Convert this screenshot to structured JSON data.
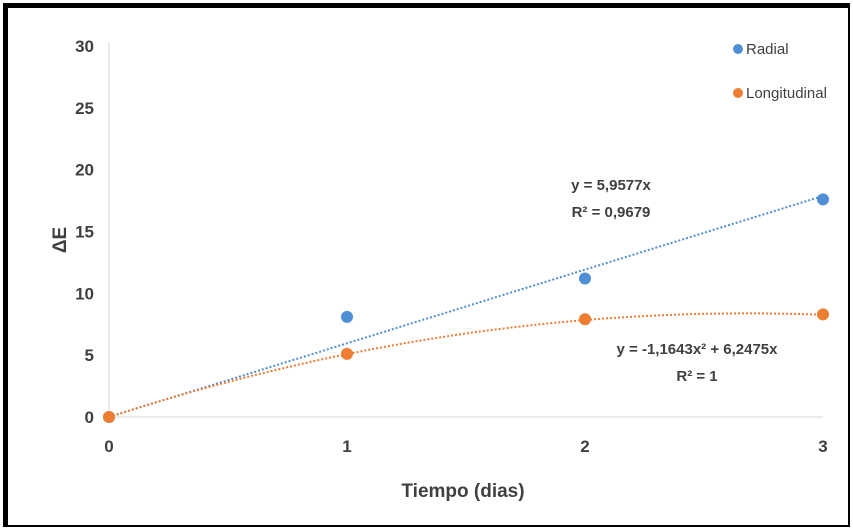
{
  "chart_data": {
    "type": "scatter",
    "xlabel": "Tiempo (dias)",
    "ylabel": "ΔE",
    "xlim": [
      0,
      3
    ],
    "ylim": [
      0,
      30
    ],
    "x_ticks": [
      "0",
      "1",
      "2",
      "3"
    ],
    "y_ticks": [
      "0",
      "5",
      "10",
      "15",
      "20",
      "25",
      "30"
    ],
    "grid": false,
    "legend_position": "top-right",
    "series": [
      {
        "name": "Radial",
        "color": "#4E8FD6",
        "x": [
          0,
          1,
          2,
          3
        ],
        "y": [
          0,
          8.1,
          11.2,
          17.6
        ],
        "trendline": {
          "type": "linear",
          "a": 0,
          "b": 5.9577,
          "equation": "y = 5,9577x",
          "r2": "R² = 0,9679"
        }
      },
      {
        "name": "Longitudinal",
        "color": "#ED7D31",
        "x": [
          0,
          1,
          2,
          3
        ],
        "y": [
          0,
          5.1,
          7.9,
          8.3
        ],
        "trendline": {
          "type": "poly2",
          "a": -1.1643,
          "b": 6.2475,
          "equation": "y = -1,1643x² + 6,2475x",
          "r2": "R² = 1"
        }
      }
    ]
  }
}
